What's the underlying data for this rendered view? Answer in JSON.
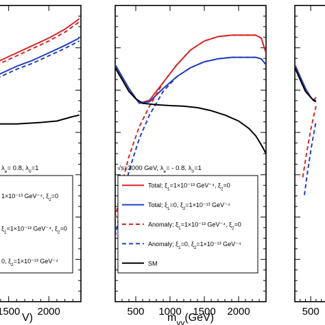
{
  "colors": {
    "total": "#d62728",
    "total_alt": "#1f3fbf",
    "sm": "#000000",
    "frame": "#000000",
    "legend_bg": "#ffffff"
  },
  "chart_data": [
    {
      "type": "line",
      "panel": "left",
      "xlabel": "V)",
      "x_ticks": [
        1500,
        2000
      ],
      "x_tick_labels": [
        "1500",
        "2000"
      ],
      "xlim": [
        1050,
        2400
      ],
      "ylim": [
        0,
        1
      ],
      "annotation": "λe= 0.8,  λ0=1",
      "legend": {
        "placement": "lower-left",
        "entries": [
          "1×10⁻¹³ GeV⁻⁴, ξ2=0",
          "ξ1=1×10⁻¹³ GeV⁻⁴, ξ2=0",
          "0, ξ2=1×10⁻¹³ GeV⁻⁴"
        ]
      },
      "series": [
        {
          "style": "solid",
          "color": "#d62728",
          "x": [
            1050,
            1200,
            1400,
            1600,
            1800,
            2000,
            2200,
            2380
          ],
          "y": [
            0.76,
            0.785,
            0.815,
            0.84,
            0.865,
            0.89,
            0.92,
            0.955
          ]
        },
        {
          "style": "solid",
          "color": "#1f3fbf",
          "x": [
            1050,
            1200,
            1400,
            1600,
            1800,
            2000,
            2200,
            2380
          ],
          "y": [
            0.72,
            0.745,
            0.77,
            0.795,
            0.815,
            0.84,
            0.865,
            0.89
          ]
        },
        {
          "style": "dashed",
          "color": "#d62728",
          "x": [
            1050,
            1200,
            1400,
            1600,
            1800,
            2000,
            2200,
            2380
          ],
          "y": [
            0.75,
            0.775,
            0.805,
            0.83,
            0.855,
            0.88,
            0.91,
            0.945
          ]
        },
        {
          "style": "dashed",
          "color": "#1f3fbf",
          "x": [
            1050,
            1200,
            1400,
            1600,
            1800,
            2000,
            2200,
            2380
          ],
          "y": [
            0.71,
            0.735,
            0.76,
            0.785,
            0.805,
            0.83,
            0.855,
            0.88
          ]
        },
        {
          "style": "solid",
          "color": "#000000",
          "x": [
            1050,
            1300,
            1600,
            1900,
            2100,
            2300,
            2380
          ],
          "y": [
            0.6,
            0.6,
            0.6,
            0.605,
            0.61,
            0.625,
            0.63
          ]
        }
      ]
    },
    {
      "type": "line",
      "panel": "center",
      "xlabel": "mγγ(GeV)",
      "x_ticks": [
        500,
        1000,
        1500,
        2000
      ],
      "x_tick_labels": [
        "500",
        "1000",
        "1500",
        "2000"
      ],
      "xlim": [
        200,
        2400
      ],
      "ylim": [
        0,
        1
      ],
      "annotation": "√s=3000 GeV,  λe= - 0.8,  λ0=1",
      "legend": {
        "placement": "lower-left",
        "entries": [
          "Total; ξ1=1×10⁻¹³ GeV⁻⁴, ξ2=0",
          "Total; ξ1=0, ξ2=1×10⁻¹³ GeV⁻⁴",
          "Anomaly; ξ1=1×10⁻¹³ GeV⁻⁴, ξ2=0",
          "Anomaly; ξ1=0, ξ2=1×10⁻¹³ GeV⁻⁴",
          "SM"
        ]
      },
      "series": [
        {
          "name": "Total; ξ1=1×10⁻¹³ GeV⁻⁴, ξ2=0",
          "style": "solid",
          "color": "#d62728",
          "x": [
            200,
            400,
            550,
            700,
            900,
            1100,
            1300,
            1500,
            1700,
            1900,
            2100,
            2250,
            2330,
            2400
          ],
          "y": [
            0.8,
            0.72,
            0.67,
            0.68,
            0.74,
            0.8,
            0.85,
            0.88,
            0.895,
            0.9,
            0.9,
            0.9,
            0.89,
            0.84
          ]
        },
        {
          "name": "Total; ξ1=0, ξ2=1×10⁻¹³ GeV⁻⁴",
          "style": "solid",
          "color": "#1f3fbf",
          "x": [
            200,
            400,
            550,
            700,
            900,
            1100,
            1300,
            1500,
            1700,
            1900,
            2100,
            2250,
            2330,
            2400
          ],
          "y": [
            0.8,
            0.72,
            0.67,
            0.675,
            0.72,
            0.76,
            0.79,
            0.81,
            0.82,
            0.825,
            0.825,
            0.825,
            0.82,
            0.8
          ]
        },
        {
          "name": "Anomaly; ξ1=1×10⁻¹³ GeV⁻⁴, ξ2=0",
          "style": "dashed",
          "color": "#d62728",
          "x": [
            200,
            300,
            400,
            550,
            700,
            900,
            1100,
            1300,
            1500,
            1700,
            1900,
            2100,
            2250,
            2330,
            2400
          ],
          "y": [
            0.28,
            0.4,
            0.49,
            0.59,
            0.66,
            0.74,
            0.8,
            0.85,
            0.88,
            0.895,
            0.9,
            0.9,
            0.9,
            0.89,
            0.84
          ]
        },
        {
          "name": "Anomaly; ξ1=0, ξ2=1×10⁻¹³ GeV⁻⁴",
          "style": "dashed",
          "color": "#1f3fbf",
          "x": [
            200,
            300,
            400,
            550,
            700,
            900,
            1100,
            1300,
            1500,
            1700,
            1900,
            2100,
            2250,
            2330,
            2400
          ],
          "y": [
            0.22,
            0.34,
            0.44,
            0.55,
            0.63,
            0.71,
            0.76,
            0.79,
            0.81,
            0.82,
            0.825,
            0.825,
            0.825,
            0.82,
            0.8
          ]
        },
        {
          "name": "SM",
          "style": "solid",
          "color": "#000000",
          "x": [
            200,
            300,
            400,
            500,
            600,
            800,
            1000,
            1200,
            1400,
            1600,
            1800,
            2000,
            2150,
            2250,
            2330,
            2400
          ],
          "y": [
            0.79,
            0.75,
            0.71,
            0.685,
            0.67,
            0.665,
            0.662,
            0.66,
            0.655,
            0.645,
            0.63,
            0.61,
            0.585,
            0.56,
            0.53,
            0.5
          ]
        }
      ]
    },
    {
      "type": "line",
      "panel": "right",
      "xlabel": "",
      "x_ticks": [
        500
      ],
      "x_tick_labels": [
        "500"
      ],
      "xlim": [
        200,
        2400
      ],
      "ylim": [
        0,
        1
      ],
      "series": [
        {
          "style": "solid",
          "color": "#d62728",
          "x": [
            200,
            300,
            400,
            500,
            550,
            600
          ],
          "y": [
            0.8,
            0.76,
            0.72,
            0.69,
            0.68,
            0.69
          ]
        },
        {
          "style": "solid",
          "color": "#1f3fbf",
          "x": [
            200,
            300,
            400,
            500,
            550,
            600
          ],
          "y": [
            0.8,
            0.76,
            0.72,
            0.69,
            0.68,
            0.68
          ]
        },
        {
          "style": "solid",
          "color": "#000000",
          "x": [
            200,
            300,
            400,
            500,
            550,
            600
          ],
          "y": [
            0.79,
            0.75,
            0.71,
            0.69,
            0.68,
            0.675
          ]
        },
        {
          "style": "dashed",
          "color": "#d62728",
          "x": [
            350,
            420,
            500,
            560,
            600
          ],
          "y": [
            0.42,
            0.5,
            0.58,
            0.63,
            0.66
          ]
        },
        {
          "style": "dashed",
          "color": "#1f3fbf",
          "x": [
            380,
            450,
            520,
            580,
            600
          ],
          "y": [
            0.36,
            0.45,
            0.53,
            0.59,
            0.61
          ]
        }
      ]
    }
  ]
}
